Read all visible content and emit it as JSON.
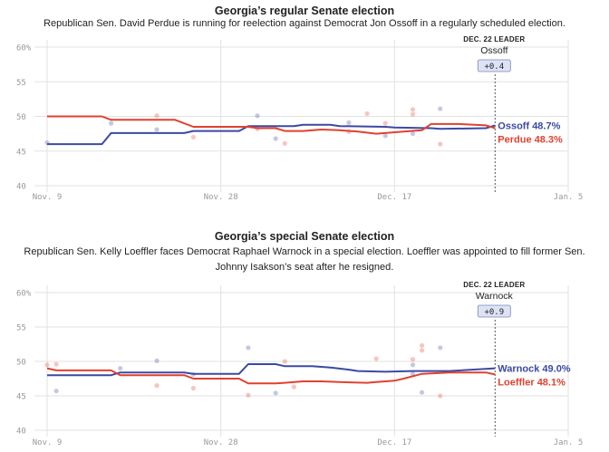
{
  "chart_data": [
    {
      "type": "line",
      "title": "Georgia’s regular Senate election",
      "subtitle": "Republican Sen. David Perdue is running for reelection against Democrat Jon Ossoff in a regularly scheduled election.",
      "x_ticks": [
        "Nov. 9",
        "Nov. 28",
        "Dec. 17",
        "Jan. 5"
      ],
      "ylim": [
        40,
        60
      ],
      "y_ticks": [
        "60%",
        "55",
        "50",
        "45",
        "40"
      ],
      "leader_box": {
        "label": "DEC. 22 LEADER",
        "name": "Ossoff",
        "margin": "+0.4"
      },
      "series": [
        {
          "name": "Ossoff",
          "end_label": "Ossoff 48.7%",
          "color": "#3a4aa3",
          "values": [
            [
              0,
              46
            ],
            [
              6,
              46
            ],
            [
              7,
              47.6
            ],
            [
              15,
              47.6
            ],
            [
              16,
              47.9
            ],
            [
              21,
              47.9
            ],
            [
              22,
              48.6
            ],
            [
              27,
              48.6
            ],
            [
              28,
              48.8
            ],
            [
              31,
              48.8
            ],
            [
              32,
              48.6
            ],
            [
              37,
              48.5
            ],
            [
              38,
              48.4
            ],
            [
              42,
              48.3
            ],
            [
              43,
              48.2
            ],
            [
              48,
              48.3
            ],
            [
              49,
              48.7
            ]
          ]
        },
        {
          "name": "Perdue",
          "end_label": "Perdue 48.3%",
          "color": "#e0412f",
          "values": [
            [
              0,
              50
            ],
            [
              6,
              50
            ],
            [
              7,
              49.5
            ],
            [
              14,
              49.5
            ],
            [
              16,
              48.5
            ],
            [
              22,
              48.5
            ],
            [
              23,
              48.3
            ],
            [
              25,
              48.3
            ],
            [
              26,
              47.9
            ],
            [
              28,
              47.9
            ],
            [
              30,
              48.1
            ],
            [
              32,
              48
            ],
            [
              34,
              47.8
            ],
            [
              36,
              47.5
            ],
            [
              39,
              47.8
            ],
            [
              41,
              48
            ],
            [
              42,
              48.9
            ],
            [
              45,
              48.9
            ],
            [
              48,
              48.7
            ],
            [
              49,
              48.3
            ]
          ]
        }
      ],
      "polls": [
        {
          "series": "Ossoff",
          "x": 0,
          "y": 46.2
        },
        {
          "series": "Ossoff",
          "x": 7,
          "y": 49
        },
        {
          "series": "Ossoff",
          "x": 12,
          "y": 48.1
        },
        {
          "series": "Ossoff",
          "x": 23,
          "y": 50.1
        },
        {
          "series": "Ossoff",
          "x": 25,
          "y": 46.8
        },
        {
          "series": "Ossoff",
          "x": 33,
          "y": 49.1
        },
        {
          "series": "Ossoff",
          "x": 37,
          "y": 47.2
        },
        {
          "series": "Ossoff",
          "x": 40,
          "y": 47.5
        },
        {
          "series": "Ossoff",
          "x": 43,
          "y": 51.1
        },
        {
          "series": "Perdue",
          "x": 12,
          "y": 50.1
        },
        {
          "series": "Perdue",
          "x": 16,
          "y": 47
        },
        {
          "series": "Perdue",
          "x": 23,
          "y": 48.2
        },
        {
          "series": "Perdue",
          "x": 26,
          "y": 46.1
        },
        {
          "series": "Perdue",
          "x": 33,
          "y": 47.8
        },
        {
          "series": "Perdue",
          "x": 35,
          "y": 50.4
        },
        {
          "series": "Perdue",
          "x": 37,
          "y": 49
        },
        {
          "series": "Perdue",
          "x": 40,
          "y": 50.3
        },
        {
          "series": "Perdue",
          "x": 40,
          "y": 51
        },
        {
          "series": "Perdue",
          "x": 43,
          "y": 46
        }
      ]
    },
    {
      "type": "line",
      "title": "Georgia’s special Senate election",
      "subtitle": "Republican Sen. Kelly Loeffler faces Democrat Raphael Warnock in a special election. Loeffler was appointed to fill former Sen. Johnny Isakson’s seat after he resigned.",
      "x_ticks": [
        "Nov. 9",
        "Nov. 28",
        "Dec. 17",
        "Jan. 5"
      ],
      "ylim": [
        40,
        60
      ],
      "y_ticks": [
        "60%",
        "55",
        "50",
        "45",
        "40"
      ],
      "leader_box": {
        "label": "DEC. 22 LEADER",
        "name": "Warnock",
        "margin": "+0.9"
      },
      "series": [
        {
          "name": "Warnock",
          "end_label": "Warnock 49.0%",
          "color": "#3a4aa3",
          "values": [
            [
              0,
              48
            ],
            [
              7,
              48
            ],
            [
              8,
              48.4
            ],
            [
              15,
              48.4
            ],
            [
              16,
              48.2
            ],
            [
              21,
              48.2
            ],
            [
              22,
              49.6
            ],
            [
              25,
              49.6
            ],
            [
              26,
              49.3
            ],
            [
              29,
              49.3
            ],
            [
              31,
              49.1
            ],
            [
              33,
              48.8
            ],
            [
              34,
              48.6
            ],
            [
              37,
              48.5
            ],
            [
              40,
              48.6
            ],
            [
              44,
              48.6
            ],
            [
              49,
              49
            ]
          ]
        },
        {
          "name": "Loeffler",
          "end_label": "Loeffler 48.1%",
          "color": "#e0412f",
          "values": [
            [
              0,
              49
            ],
            [
              1,
              48.7
            ],
            [
              7,
              48.7
            ],
            [
              8,
              48
            ],
            [
              15,
              48
            ],
            [
              16,
              47.5
            ],
            [
              21,
              47.5
            ],
            [
              22,
              46.8
            ],
            [
              25,
              46.8
            ],
            [
              26,
              46.9
            ],
            [
              28,
              47.1
            ],
            [
              30,
              47.1
            ],
            [
              32,
              47
            ],
            [
              35,
              46.9
            ],
            [
              36,
              47
            ],
            [
              38,
              47.2
            ],
            [
              39,
              47.5
            ],
            [
              41,
              48.2
            ],
            [
              44,
              48.4
            ],
            [
              48,
              48.4
            ],
            [
              49,
              48.1
            ]
          ]
        }
      ],
      "polls": [
        {
          "series": "Warnock",
          "x": 1,
          "y": 45.7
        },
        {
          "series": "Warnock",
          "x": 8,
          "y": 49
        },
        {
          "series": "Warnock",
          "x": 12,
          "y": 50.1
        },
        {
          "series": "Warnock",
          "x": 16,
          "y": 48.1
        },
        {
          "series": "Warnock",
          "x": 22,
          "y": 52
        },
        {
          "series": "Warnock",
          "x": 25,
          "y": 45.4
        },
        {
          "series": "Warnock",
          "x": 40,
          "y": 49.5
        },
        {
          "series": "Warnock",
          "x": 40,
          "y": 48.2
        },
        {
          "series": "Warnock",
          "x": 41,
          "y": 45.5
        },
        {
          "series": "Warnock",
          "x": 43,
          "y": 52
        },
        {
          "series": "Loeffler",
          "x": 0,
          "y": 49.5
        },
        {
          "series": "Loeffler",
          "x": 1,
          "y": 49.6
        },
        {
          "series": "Loeffler",
          "x": 12,
          "y": 46.5
        },
        {
          "series": "Loeffler",
          "x": 16,
          "y": 46.1
        },
        {
          "series": "Loeffler",
          "x": 22,
          "y": 45.1
        },
        {
          "series": "Loeffler",
          "x": 26,
          "y": 50
        },
        {
          "series": "Loeffler",
          "x": 27,
          "y": 46.3
        },
        {
          "series": "Loeffler",
          "x": 36,
          "y": 50.4
        },
        {
          "series": "Loeffler",
          "x": 40,
          "y": 50.3
        },
        {
          "series": "Loeffler",
          "x": 41,
          "y": 51.6
        },
        {
          "series": "Loeffler",
          "x": 41,
          "y": 52.3
        },
        {
          "series": "Loeffler",
          "x": 43,
          "y": 45
        }
      ]
    }
  ]
}
